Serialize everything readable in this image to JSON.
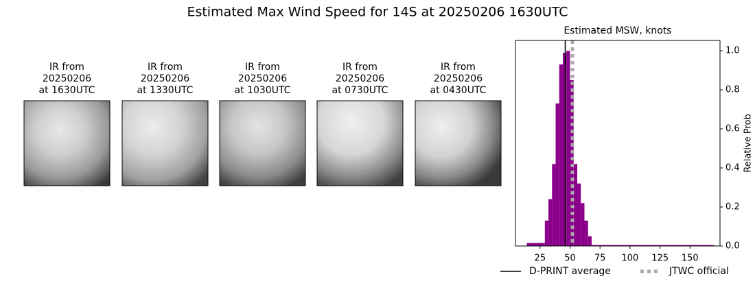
{
  "title": "Estimated Max Wind Speed for 14S at 20250206 1630UTC",
  "images": [
    {
      "lines": [
        "IR from",
        "20250206",
        "at 1630UTC"
      ]
    },
    {
      "lines": [
        "IR from",
        "20250206",
        "at 1330UTC"
      ]
    },
    {
      "lines": [
        "IR from",
        "20250206",
        "at 1030UTC"
      ]
    },
    {
      "lines": [
        "IR from",
        "20250206",
        "at 0730UTC"
      ]
    },
    {
      "lines": [
        "IR from",
        "20250206",
        "at 0430UTC"
      ]
    }
  ],
  "chart_data": {
    "type": "histogram",
    "title": "Estimated MSW, knots",
    "y_label": "Relative Prob",
    "bins": [
      14,
      29,
      32,
      35,
      38,
      41,
      44,
      47,
      50,
      53,
      56,
      59,
      62,
      65,
      68,
      170
    ],
    "values": [
      0.015,
      0.13,
      0.24,
      0.42,
      0.73,
      0.93,
      0.99,
      1.0,
      0.85,
      0.42,
      0.32,
      0.22,
      0.13,
      0.05,
      0.005
    ],
    "color": "#8b008b",
    "xlim": [
      4.5,
      175
    ],
    "xticks": [
      25,
      50,
      75,
      100,
      125,
      150
    ],
    "ylim": [
      0,
      1.053
    ],
    "yticks": [
      {
        "value": 0,
        "label": "0.0"
      },
      0.2,
      0.4,
      0.6,
      0.8,
      {
        "value": 1,
        "label": "1.0"
      }
    ],
    "lines": [
      {
        "name": "D-PRINT average",
        "value": 46,
        "color": "#000000",
        "style": "solid"
      },
      {
        "name": "JTWC official",
        "value": 52,
        "color": "#aaaaaa",
        "style": "dotted"
      }
    ]
  }
}
